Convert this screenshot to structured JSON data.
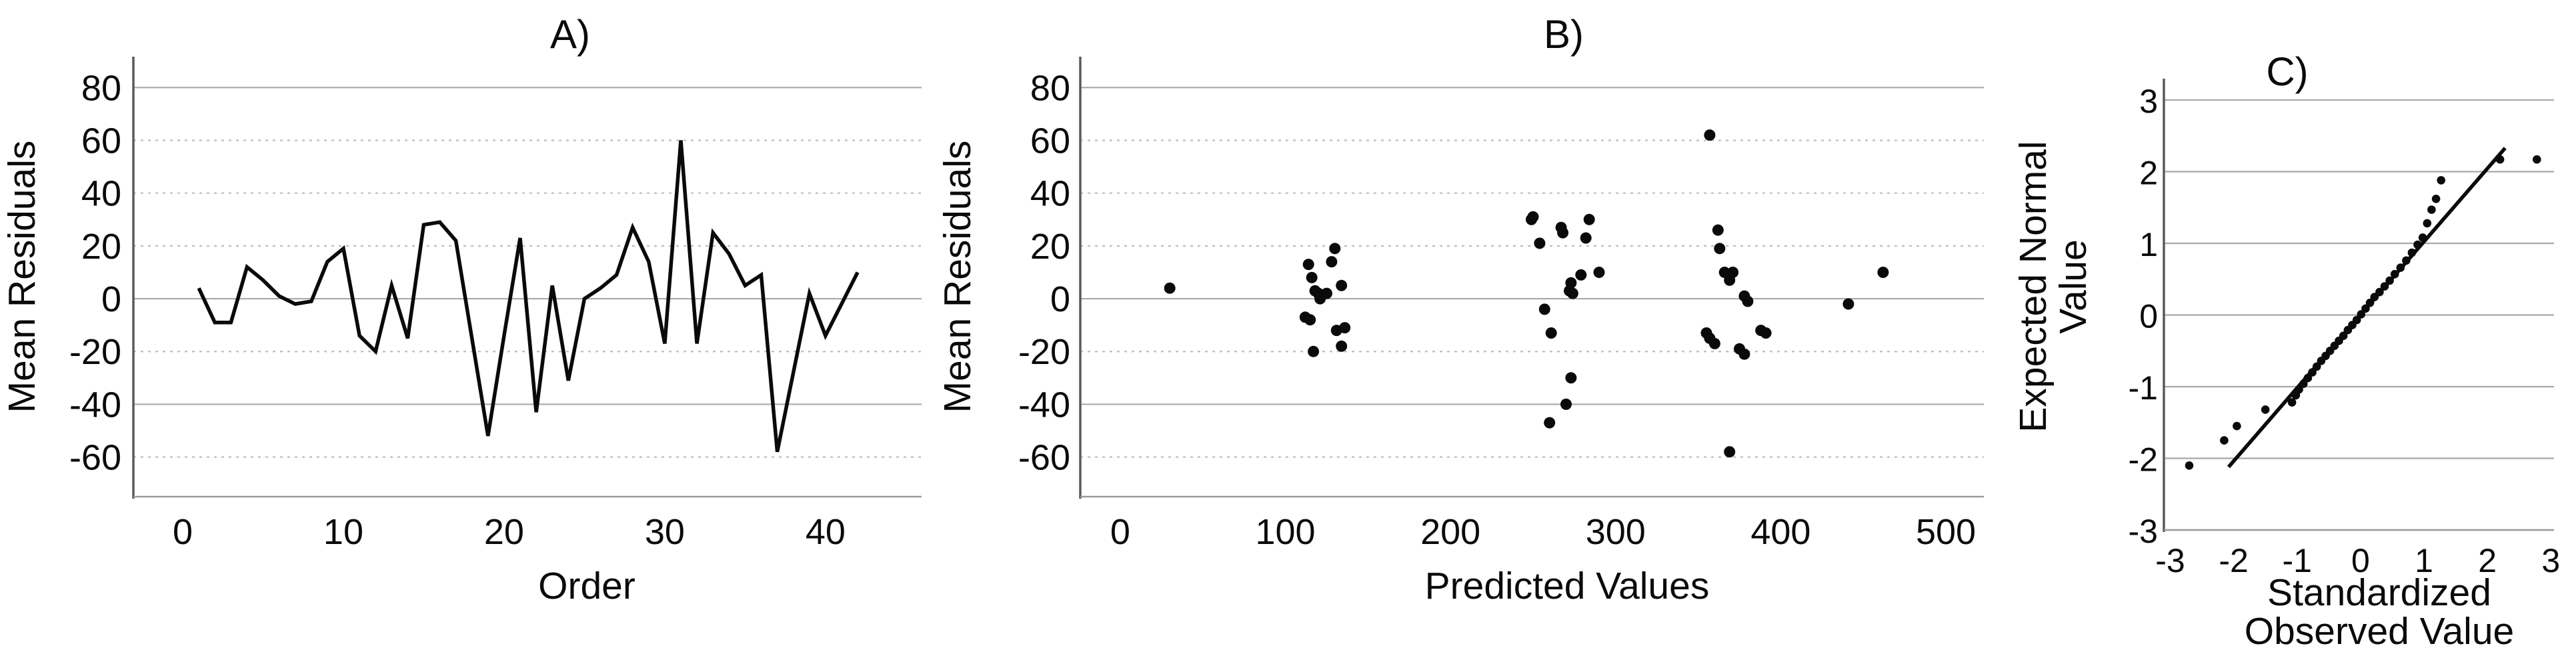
{
  "figure": {
    "background": "#ffffff",
    "ink_color": "#0a0a0a",
    "gridline_solid_color": "#a9a9a9",
    "gridline_dotted_color": "#bdbdbd",
    "spine_color": "#5a5a5a",
    "panels": [
      {
        "id": "A",
        "title": "A)",
        "xlabel": "Order",
        "ylabel": "Mean Residuals"
      },
      {
        "id": "B",
        "title": "B)",
        "xlabel": "Predicted Values",
        "ylabel": "Mean Residuals"
      },
      {
        "id": "C",
        "title": "C)",
        "xlabel_line1": "Standardized",
        "xlabel_line2": "Observed Value",
        "ylabel_line1": "Expected Normal",
        "ylabel_line2": "Value"
      }
    ]
  },
  "chart_data": [
    {
      "type": "line",
      "title": "A)",
      "xlabel": "Order",
      "ylabel": "Mean Residuals",
      "x_ticks": [
        0,
        10,
        20,
        30,
        40
      ],
      "y_ticks": [
        80,
        60,
        40,
        20,
        0,
        -20,
        -40,
        -60
      ],
      "xlim": [
        -3.07,
        45.98
      ],
      "ylim": [
        -75,
        91.7
      ],
      "grid": "horizontal",
      "legend": "none",
      "x": [
        1,
        2,
        3,
        4,
        5,
        6,
        7,
        8,
        9,
        10,
        11,
        12,
        13,
        14,
        15,
        16,
        17,
        18,
        19,
        20,
        21,
        22,
        23,
        24,
        25,
        26,
        27,
        28,
        29,
        30,
        31,
        32,
        33,
        34,
        35,
        36,
        37,
        38,
        39,
        40,
        41,
        42
      ],
      "values": [
        4,
        -9,
        -9,
        12,
        7,
        1,
        -2,
        -1,
        14,
        19,
        -14,
        -20,
        5,
        -15,
        28,
        29,
        22,
        -15,
        -52,
        -14,
        23,
        -43,
        5,
        -31,
        0,
        4,
        9,
        27,
        14,
        -17,
        60,
        -17,
        25,
        17,
        5,
        9,
        -58,
        -28,
        2,
        -14,
        -2,
        10
      ]
    },
    {
      "type": "scatter",
      "title": "B)",
      "xlabel": "Predicted Values",
      "ylabel": "Mean Residuals",
      "x_ticks": [
        0,
        100,
        200,
        300,
        400,
        500
      ],
      "y_ticks": [
        80,
        60,
        40,
        20,
        0,
        -20,
        -40,
        -60
      ],
      "xlim": [
        -24.2,
        523
      ],
      "ylim": [
        -75,
        91.7
      ],
      "grid": "horizontal",
      "legend": "none",
      "points": [
        [
          30,
          4
        ],
        [
          112,
          -7
        ],
        [
          114,
          13
        ],
        [
          115,
          -8
        ],
        [
          116,
          8
        ],
        [
          117,
          -20
        ],
        [
          118,
          3
        ],
        [
          120,
          2
        ],
        [
          121,
          0
        ],
        [
          125,
          2
        ],
        [
          128,
          14
        ],
        [
          130,
          19
        ],
        [
          131,
          -12
        ],
        [
          134,
          5
        ],
        [
          134,
          -18
        ],
        [
          136,
          -11
        ],
        [
          249,
          30
        ],
        [
          250,
          31
        ],
        [
          254,
          21
        ],
        [
          257,
          -4
        ],
        [
          260,
          -47
        ],
        [
          261,
          -13
        ],
        [
          267,
          27
        ],
        [
          268,
          25
        ],
        [
          270,
          -40
        ],
        [
          272,
          3
        ],
        [
          273,
          6
        ],
        [
          273,
          -30
        ],
        [
          274,
          2
        ],
        [
          279,
          9
        ],
        [
          282,
          23
        ],
        [
          284,
          30
        ],
        [
          290,
          10
        ],
        [
          355,
          -13
        ],
        [
          357,
          62
        ],
        [
          357,
          -15
        ],
        [
          360,
          -17
        ],
        [
          362,
          26
        ],
        [
          363,
          19
        ],
        [
          366,
          10
        ],
        [
          369,
          7
        ],
        [
          369,
          -58
        ],
        [
          371,
          10
        ],
        [
          375,
          -19
        ],
        [
          378,
          1
        ],
        [
          378,
          -21
        ],
        [
          380,
          -1
        ],
        [
          388,
          -12
        ],
        [
          391,
          -13
        ],
        [
          441,
          -2
        ],
        [
          462,
          10
        ]
      ]
    },
    {
      "type": "scatter_line",
      "title": "C)",
      "xlabel": "Standardized Observed Value",
      "ylabel": "Expected Normal Value",
      "x_ticks": [
        -3,
        -2,
        -1,
        0,
        1,
        2,
        3
      ],
      "y_ticks": [
        3,
        2,
        1,
        0,
        -1,
        -2,
        -3
      ],
      "xlim": [
        -3.1,
        3.05
      ],
      "ylim": [
        -3,
        3
      ],
      "grid": "horizontal",
      "legend": "none",
      "reference_line": {
        "x1": -2.08,
        "y1": -2.12,
        "x2": 2.28,
        "y2": 2.33
      },
      "points": [
        [
          -2.7,
          -2.1
        ],
        [
          -2.15,
          -1.75
        ],
        [
          -1.95,
          -1.55
        ],
        [
          -1.5,
          -1.32
        ],
        [
          -1.08,
          -1.22
        ],
        [
          -1.02,
          -1.12
        ],
        [
          -0.97,
          -1.04
        ],
        [
          -0.9,
          -0.96
        ],
        [
          -0.83,
          -0.88
        ],
        [
          -0.76,
          -0.8
        ],
        [
          -0.69,
          -0.72
        ],
        [
          -0.62,
          -0.64
        ],
        [
          -0.55,
          -0.57
        ],
        [
          -0.48,
          -0.5
        ],
        [
          -0.41,
          -0.43
        ],
        [
          -0.34,
          -0.36
        ],
        [
          -0.27,
          -0.29
        ],
        [
          -0.2,
          -0.21
        ],
        [
          -0.13,
          -0.14
        ],
        [
          -0.06,
          -0.07
        ],
        [
          0.01,
          0.01
        ],
        [
          0.08,
          0.09
        ],
        [
          0.15,
          0.17
        ],
        [
          0.22,
          0.25
        ],
        [
          0.3,
          0.32
        ],
        [
          0.38,
          0.4
        ],
        [
          0.46,
          0.48
        ],
        [
          0.54,
          0.57
        ],
        [
          0.63,
          0.66
        ],
        [
          0.72,
          0.76
        ],
        [
          0.81,
          0.87
        ],
        [
          0.9,
          0.98
        ],
        [
          0.98,
          1.08
        ],
        [
          1.05,
          1.28
        ],
        [
          1.12,
          1.47
        ],
        [
          1.19,
          1.62
        ],
        [
          1.27,
          1.88
        ],
        [
          2.2,
          2.17
        ],
        [
          2.78,
          2.17
        ]
      ]
    }
  ]
}
